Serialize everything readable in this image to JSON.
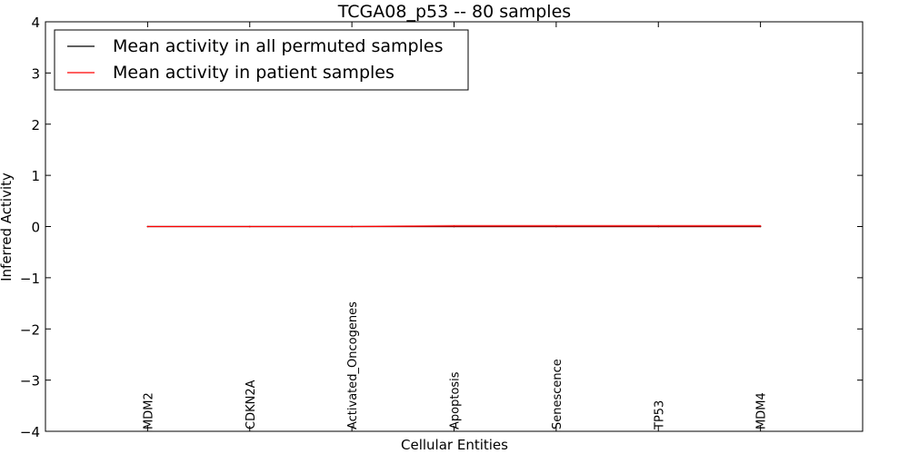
{
  "chart_data": {
    "type": "line",
    "title": "TCGA08_p53 -- 80 samples",
    "xlabel": "Cellular Entities",
    "ylabel": "Inferred Activity",
    "ylim": [
      -4,
      4
    ],
    "yticks": [
      4,
      3,
      2,
      1,
      0,
      -1,
      -2,
      -3,
      -4
    ],
    "ytick_labels": [
      "4",
      "3",
      "2",
      "1",
      "0",
      "−1",
      "−2",
      "−3",
      "−4"
    ],
    "categories": [
      "MDM2",
      "CDKN2A",
      "Activated_Oncogenes",
      "Apoptosis",
      "Senescence",
      "TP53",
      "MDM4"
    ],
    "xlim": [
      -1,
      7
    ],
    "legend_position": "top-left",
    "series": [
      {
        "name": "Mean activity in all permuted samples",
        "color": "#000000",
        "values": [
          0.0,
          0.0,
          0.0,
          0.0,
          0.0,
          0.0,
          0.0
        ]
      },
      {
        "name": "Mean activity in patient samples",
        "color": "#ff0000",
        "band_color": "#f2a6a6",
        "values": [
          0.0,
          0.0,
          0.0,
          0.01,
          0.01,
          0.01,
          0.01
        ],
        "band_low": [
          -0.01,
          -0.01,
          -0.01,
          -0.02,
          -0.02,
          -0.02,
          -0.02
        ],
        "band_high": [
          0.01,
          0.01,
          0.01,
          0.04,
          0.04,
          0.04,
          0.04
        ]
      }
    ]
  }
}
